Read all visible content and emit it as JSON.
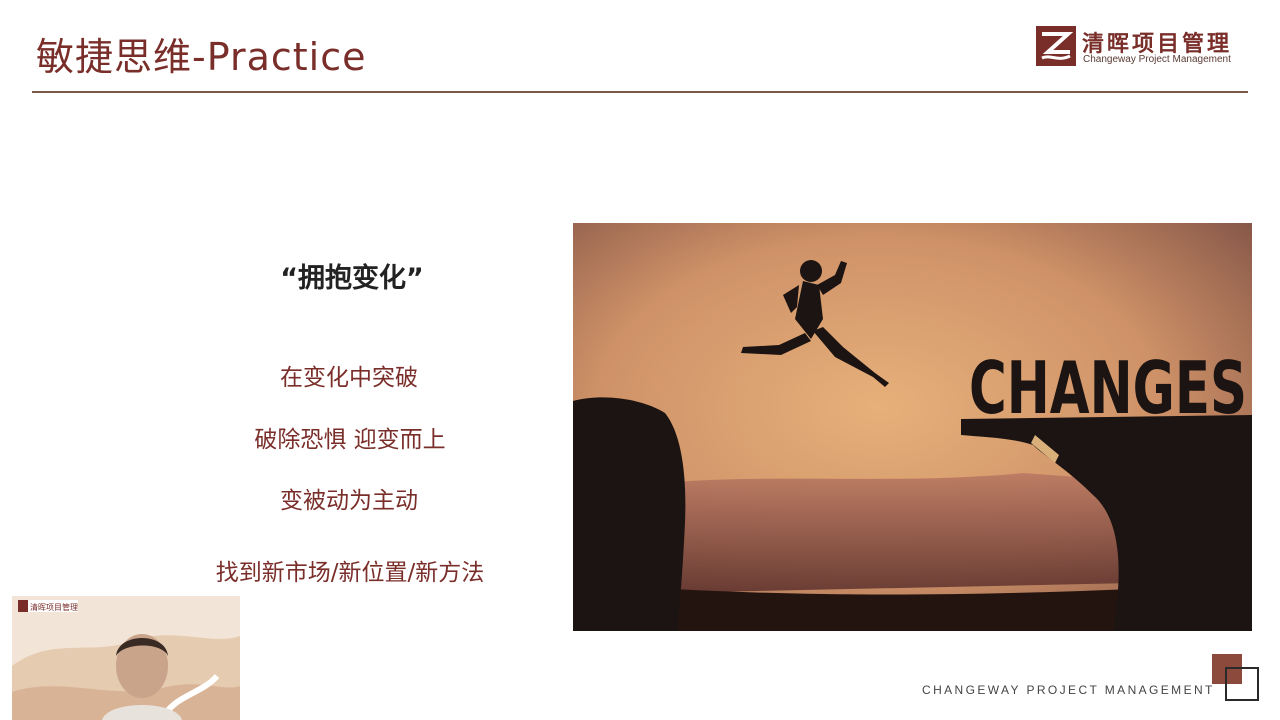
{
  "header": {
    "title": "敏捷思维-Practice",
    "logo_cn": "清晖项目管理",
    "logo_en": "Changeway Project Management"
  },
  "content": {
    "quote": "“拥抱变化”",
    "lines": [
      "在变化中突破",
      "破除恐惧 迎变而上",
      "变被动为主动",
      "找到新市场/新位置/新方法"
    ]
  },
  "image": {
    "word": "CHANGES"
  },
  "webcam": {
    "logo_text": "清晖项目管理"
  },
  "footer": {
    "text": "CHANGEWAY PROJECT MANAGEMENT"
  },
  "colors": {
    "brand": "#7a2e2a",
    "rule": "#7a5a46",
    "sky": "#d39a6c",
    "silhouette": "#1c1412"
  }
}
